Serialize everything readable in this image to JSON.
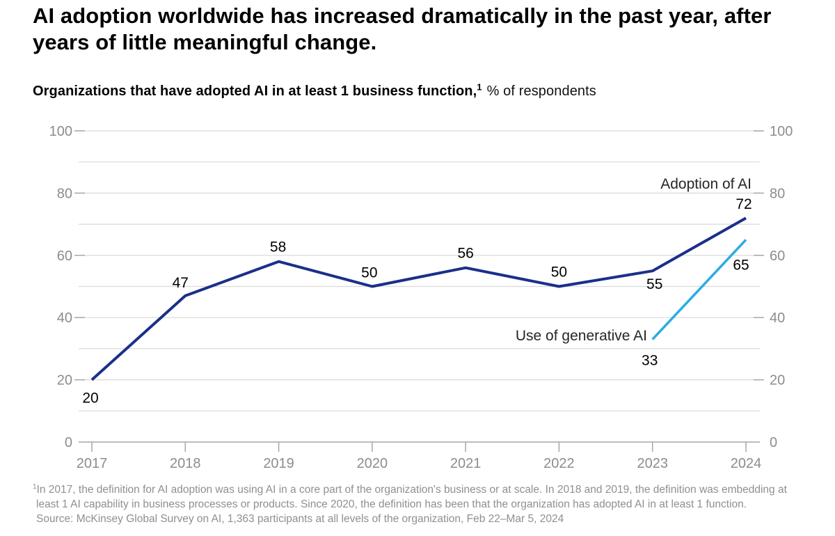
{
  "title_lines": [
    "AI adoption worldwide has increased dramatically in the past year, after",
    "years of little meaningful change."
  ],
  "subtitle": {
    "bold": "Organizations that have adopted AI in at least 1 business function,",
    "footnote_marker": "1",
    "regular": "% of respondents"
  },
  "chart_data": {
    "type": "line",
    "title": "Organizations that have adopted AI in at least 1 business function, % of respondents",
    "x": [
      2017,
      2018,
      2019,
      2020,
      2021,
      2022,
      2023,
      2024
    ],
    "series": [
      {
        "name": "Adoption of AI",
        "color": "#1b2f8a",
        "values": [
          20,
          47,
          58,
          50,
          56,
          50,
          55,
          72
        ]
      },
      {
        "name": "Use of generative AI",
        "color": "#2bace3",
        "values": [
          null,
          null,
          null,
          null,
          null,
          null,
          33,
          65
        ]
      }
    ],
    "ylim": [
      0,
      100
    ],
    "y_tick_labels": [
      0,
      20,
      40,
      60,
      80,
      100
    ],
    "grid_interval": 10,
    "grid": true,
    "y_axis_sides": "both",
    "legend_position": "direct-line-labels",
    "value_labels_shown": true
  },
  "footnote": {
    "marker": "1",
    "lines": [
      "In 2017, the definition for AI adoption was using AI in a core part of the organization's business or at scale. In 2018 and 2019, the definition was embedding at",
      "least 1 AI capability in business processes or products. Since 2020, the definition has been that the organization has adopted AI in at least 1 function.",
      "Source: McKinsey Global Survey on AI, 1,363 participants at all levels of the organization, Feb 22–Mar 5, 2024"
    ]
  },
  "colors": {
    "adoption_line": "#1b2f8a",
    "genai_line": "#2bace3",
    "grid": "#d9d9d9",
    "axis": "#a6a6a6",
    "axis_text": "#8c8c8c",
    "value_text": "#000000",
    "series_label_text": "#262626",
    "footnote_text": "#8f8f8f"
  }
}
